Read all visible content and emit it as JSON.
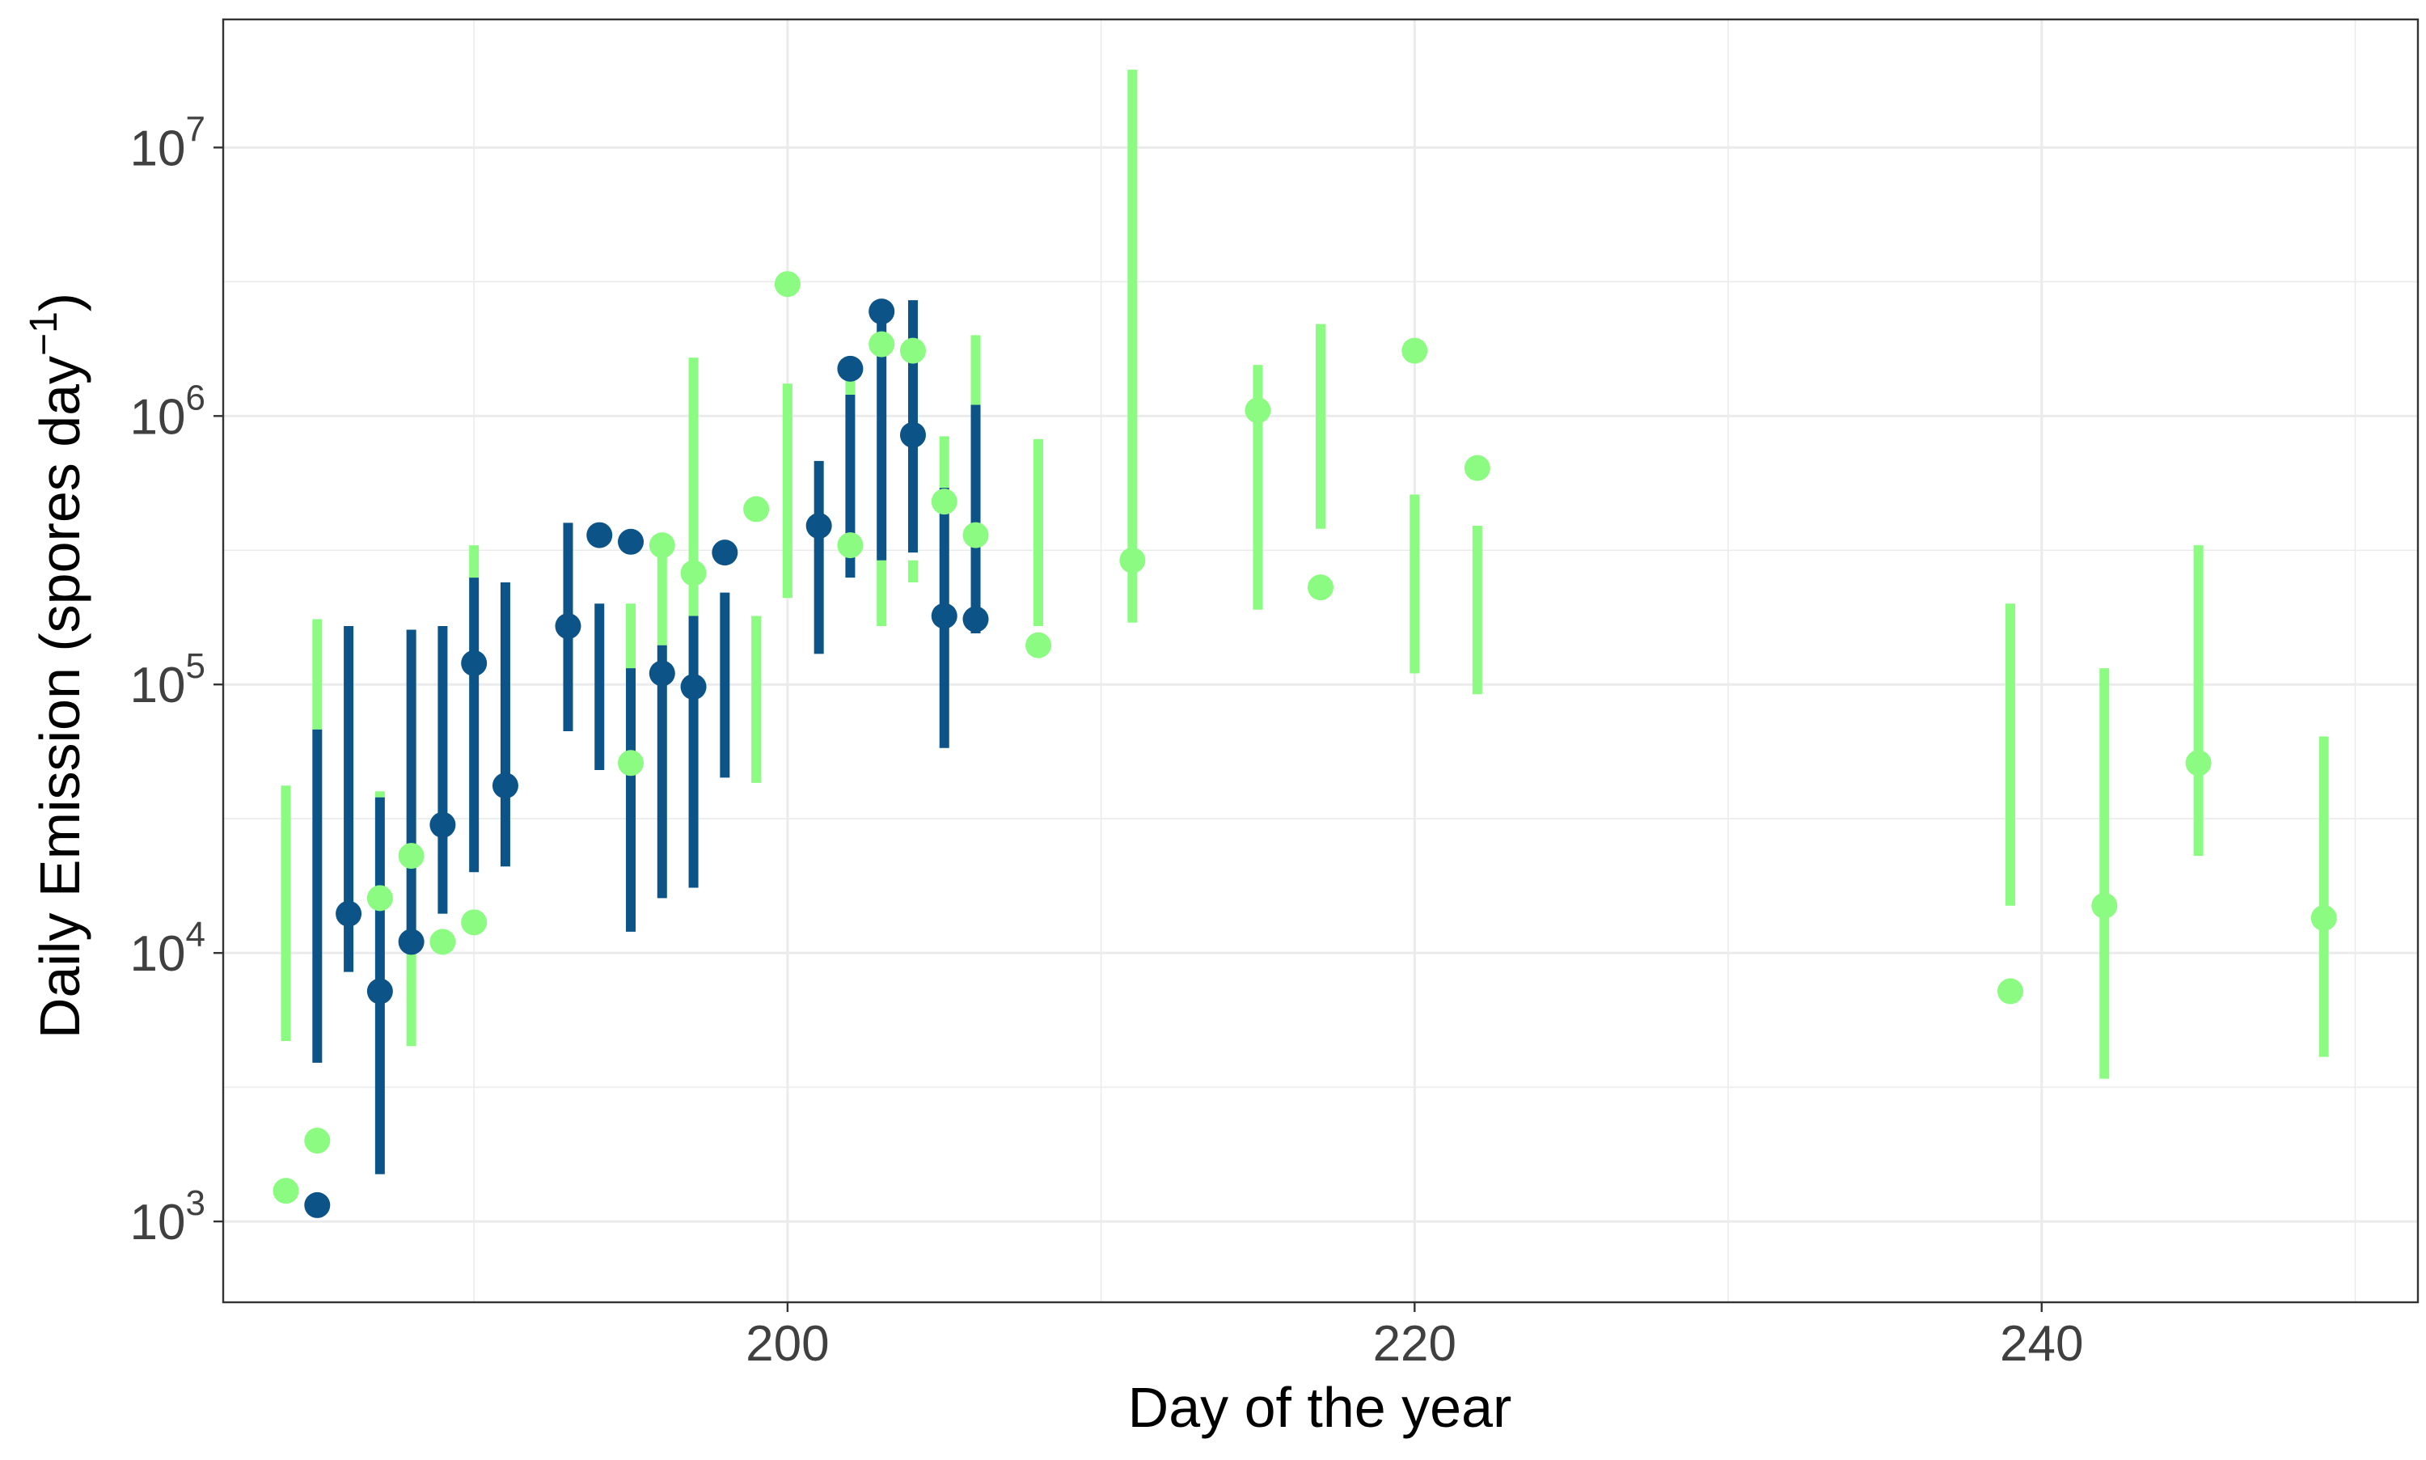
{
  "chart_data": {
    "type": "scatter",
    "title": "",
    "xlabel": "Day of the year",
    "ylabel": "Daily Emission (spores day",
    "ylabel_superscript": "−1",
    "ylabel_suffix": ")",
    "xlim": [
      182,
      252
    ],
    "ylim": [
      500,
      30000000
    ],
    "y_scale": "log10",
    "grid": true,
    "legend": "none",
    "x_ticks": [
      {
        "value": 200,
        "label": "200"
      },
      {
        "value": 220,
        "label": "220"
      },
      {
        "value": 240,
        "label": "240"
      }
    ],
    "y_ticks": [
      {
        "value": 1000,
        "base": "10",
        "exp": "3"
      },
      {
        "value": 10000,
        "base": "10",
        "exp": "4"
      },
      {
        "value": 100000,
        "base": "10",
        "exp": "5"
      },
      {
        "value": 1000000,
        "base": "10",
        "exp": "6"
      },
      {
        "value": 10000000,
        "base": "10",
        "exp": "7"
      }
    ],
    "series": [
      {
        "color": "#8CFB82",
        "points": [
          {
            "x": 184,
            "y": 1300
          },
          {
            "x": 185,
            "y": 2000
          },
          {
            "x": 187,
            "y": 16000
          },
          {
            "x": 188,
            "y": 23000
          },
          {
            "x": 189,
            "y": 11000
          },
          {
            "x": 190,
            "y": 13000
          },
          {
            "x": 195,
            "y": 51000
          },
          {
            "x": 196,
            "y": 330000
          },
          {
            "x": 197,
            "y": 260000
          },
          {
            "x": 199,
            "y": 450000
          },
          {
            "x": 200,
            "y": 3100000
          },
          {
            "x": 202,
            "y": 330000
          },
          {
            "x": 203,
            "y": 1850000
          },
          {
            "x": 204,
            "y": 1750000
          },
          {
            "x": 205,
            "y": 480000
          },
          {
            "x": 206,
            "y": 360000
          },
          {
            "x": 208,
            "y": 140000
          },
          {
            "x": 211,
            "y": 290000
          },
          {
            "x": 215,
            "y": 1050000
          },
          {
            "x": 217,
            "y": 230000
          },
          {
            "x": 220,
            "y": 1750000
          },
          {
            "x": 222,
            "y": 640000
          },
          {
            "x": 239,
            "y": 7200
          },
          {
            "x": 242,
            "y": 15000
          },
          {
            "x": 245,
            "y": 51000
          },
          {
            "x": 249,
            "y": 13500
          }
        ],
        "error_bars": [
          {
            "x": 184,
            "low": 4700,
            "high": 42000
          },
          {
            "x": 185,
            "low": 68000,
            "high": 175000
          },
          {
            "x": 187,
            "low": 38000,
            "high": 40000
          },
          {
            "x": 188,
            "low": 4500,
            "high": 11000
          },
          {
            "x": 190,
            "low": 250000,
            "high": 330000
          },
          {
            "x": 195,
            "low": 115000,
            "high": 200000
          },
          {
            "x": 196,
            "low": 140000,
            "high": 330000
          },
          {
            "x": 197,
            "low": 180000,
            "high": 1650000
          },
          {
            "x": 199,
            "low": 43000,
            "high": 180000
          },
          {
            "x": 200,
            "low": 210000,
            "high": 1320000
          },
          {
            "x": 202,
            "low": 1200000,
            "high": 1400000
          },
          {
            "x": 203,
            "low": 165000,
            "high": 290000
          },
          {
            "x": 204,
            "low": 240000,
            "high": 290000
          },
          {
            "x": 205,
            "low": 540000,
            "high": 840000
          },
          {
            "x": 206,
            "low": 1100000,
            "high": 2000000
          },
          {
            "x": 208,
            "low": 165000,
            "high": 820000
          },
          {
            "x": 211,
            "low": 170000,
            "high": 19500000
          },
          {
            "x": 215,
            "low": 190000,
            "high": 1550000
          },
          {
            "x": 217,
            "low": 380000,
            "high": 2200000
          },
          {
            "x": 220,
            "low": 110000,
            "high": 510000
          },
          {
            "x": 222,
            "low": 92000,
            "high": 390000
          },
          {
            "x": 239,
            "low": 15000,
            "high": 200000
          },
          {
            "x": 242,
            "low": 3400,
            "high": 115000
          },
          {
            "x": 245,
            "low": 23000,
            "high": 330000
          },
          {
            "x": 249,
            "low": 4100,
            "high": 64000
          }
        ]
      },
      {
        "color": "#0C5387",
        "points": [
          {
            "x": 185,
            "y": 1150
          },
          {
            "x": 186,
            "y": 14000
          },
          {
            "x": 187,
            "y": 7200
          },
          {
            "x": 188,
            "y": 11000
          },
          {
            "x": 189,
            "y": 30000
          },
          {
            "x": 190,
            "y": 120000
          },
          {
            "x": 191,
            "y": 42000
          },
          {
            "x": 193,
            "y": 165000
          },
          {
            "x": 194,
            "y": 360000
          },
          {
            "x": 195,
            "y": 340000
          },
          {
            "x": 196,
            "y": 110000
          },
          {
            "x": 197,
            "y": 98000
          },
          {
            "x": 198,
            "y": 310000
          },
          {
            "x": 201,
            "y": 390000
          },
          {
            "x": 202,
            "y": 1500000
          },
          {
            "x": 203,
            "y": 2450000
          },
          {
            "x": 204,
            "y": 850000
          },
          {
            "x": 205,
            "y": 180000
          },
          {
            "x": 206,
            "y": 175000
          }
        ],
        "error_bars": [
          {
            "x": 185,
            "low": 3900,
            "high": 68000
          },
          {
            "x": 186,
            "low": 8500,
            "high": 165000
          },
          {
            "x": 187,
            "low": 1500,
            "high": 38000
          },
          {
            "x": 188,
            "low": 11000,
            "high": 160000
          },
          {
            "x": 189,
            "low": 14000,
            "high": 165000
          },
          {
            "x": 190,
            "low": 20000,
            "high": 250000
          },
          {
            "x": 191,
            "low": 21000,
            "high": 240000
          },
          {
            "x": 193,
            "low": 67000,
            "high": 400000
          },
          {
            "x": 194,
            "low": 48000,
            "high": 200000
          },
          {
            "x": 195,
            "low": 12000,
            "high": 115000
          },
          {
            "x": 196,
            "low": 16000,
            "high": 140000
          },
          {
            "x": 197,
            "low": 17500,
            "high": 180000
          },
          {
            "x": 198,
            "low": 45000,
            "high": 220000
          },
          {
            "x": 201,
            "low": 130000,
            "high": 680000
          },
          {
            "x": 202,
            "low": 250000,
            "high": 1200000
          },
          {
            "x": 203,
            "low": 290000,
            "high": 2700000
          },
          {
            "x": 204,
            "low": 310000,
            "high": 2700000
          },
          {
            "x": 205,
            "low": 58000,
            "high": 540000
          },
          {
            "x": 206,
            "low": 155000,
            "high": 1100000
          }
        ]
      }
    ]
  }
}
